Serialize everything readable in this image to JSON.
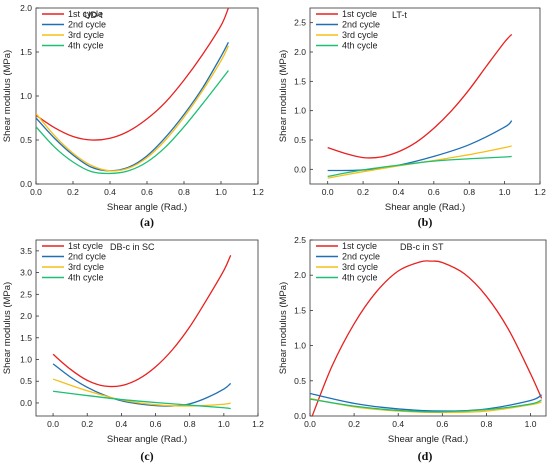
{
  "chart_data": [
    {
      "type": "line",
      "panel": "a",
      "caption": "(a)",
      "tag": "UD-t",
      "xlabel": "Shear angle (Rad.)",
      "ylabel": "Shear modulus (MPa)",
      "xlim": [
        0,
        1.2
      ],
      "ylim": [
        0,
        2.0
      ],
      "xticks": [
        "0.0",
        "0.2",
        "0.4",
        "0.6",
        "0.8",
        "1.0",
        "1.2"
      ],
      "yticks": [
        "0.0",
        "0.5",
        "1.0",
        "1.5",
        "2.0"
      ],
      "legend_position": "top-right",
      "series": [
        {
          "name": "1st cycle",
          "color": "#e8211f",
          "x": [
            0,
            0.1,
            0.2,
            0.3,
            0.4,
            0.5,
            0.6,
            0.7,
            0.8,
            0.9,
            1.0,
            1.04
          ],
          "y": [
            0.78,
            0.64,
            0.54,
            0.5,
            0.52,
            0.6,
            0.74,
            0.93,
            1.18,
            1.47,
            1.8,
            2.0
          ]
        },
        {
          "name": "2nd cycle",
          "color": "#1f6fb4",
          "x": [
            0,
            0.1,
            0.2,
            0.3,
            0.4,
            0.5,
            0.6,
            0.7,
            0.8,
            0.9,
            1.0,
            1.04
          ],
          "y": [
            0.75,
            0.52,
            0.33,
            0.19,
            0.15,
            0.19,
            0.32,
            0.53,
            0.79,
            1.09,
            1.45,
            1.61
          ]
        },
        {
          "name": "3rd cycle",
          "color": "#f5bf16",
          "x": [
            0,
            0.1,
            0.2,
            0.3,
            0.4,
            0.5,
            0.6,
            0.7,
            0.8,
            0.9,
            1.0,
            1.04
          ],
          "y": [
            0.8,
            0.55,
            0.35,
            0.21,
            0.15,
            0.18,
            0.3,
            0.5,
            0.76,
            1.06,
            1.4,
            1.57
          ]
        },
        {
          "name": "4th cycle",
          "color": "#1dbf73",
          "x": [
            0,
            0.1,
            0.2,
            0.3,
            0.4,
            0.5,
            0.6,
            0.7,
            0.8,
            0.9,
            1.0,
            1.04
          ],
          "y": [
            0.65,
            0.42,
            0.25,
            0.14,
            0.12,
            0.15,
            0.25,
            0.42,
            0.65,
            0.91,
            1.18,
            1.29
          ]
        }
      ]
    },
    {
      "type": "line",
      "panel": "b",
      "caption": "(b)",
      "tag": "LT-t",
      "xlabel": "Shear angle (Rad.)",
      "ylabel": "Shear modulus (MPa)",
      "xlim": [
        -0.1,
        1.2
      ],
      "ylim": [
        -0.25,
        2.75
      ],
      "xticks": [
        "0.0",
        "0.2",
        "0.4",
        "0.6",
        "0.8",
        "1.0",
        "1.2"
      ],
      "yticks": [
        "0.0",
        "0.5",
        "1.0",
        "1.5",
        "2.0",
        "2.5"
      ],
      "legend_position": "top-left",
      "series": [
        {
          "name": "1st cycle",
          "color": "#e8211f",
          "x": [
            0,
            0.1,
            0.2,
            0.3,
            0.4,
            0.5,
            0.6,
            0.7,
            0.8,
            0.9,
            1.0,
            1.04
          ],
          "y": [
            0.37,
            0.27,
            0.2,
            0.21,
            0.3,
            0.46,
            0.7,
            1.0,
            1.36,
            1.77,
            2.17,
            2.3
          ]
        },
        {
          "name": "2nd cycle",
          "color": "#1f6fb4",
          "x": [
            0,
            0.2,
            0.4,
            0.6,
            0.8,
            1.0,
            1.04
          ],
          "y": [
            -0.02,
            -0.01,
            0.07,
            0.22,
            0.42,
            0.72,
            0.83
          ]
        },
        {
          "name": "3rd cycle",
          "color": "#f5bf16",
          "x": [
            0,
            0.2,
            0.4,
            0.6,
            0.8,
            1.0,
            1.04
          ],
          "y": [
            -0.15,
            -0.04,
            0.06,
            0.15,
            0.25,
            0.37,
            0.4
          ]
        },
        {
          "name": "4th cycle",
          "color": "#1dbf73",
          "x": [
            0,
            0.2,
            0.4,
            0.6,
            0.8,
            1.0,
            1.04
          ],
          "y": [
            -0.12,
            -0.01,
            0.07,
            0.14,
            0.18,
            0.21,
            0.22
          ]
        }
      ]
    },
    {
      "type": "line",
      "panel": "c",
      "caption": "(c)",
      "tag": "DB-c in SC",
      "xlabel": "Shear angle (Rad.)",
      "ylabel": "Shear modulus (MPa)",
      "xlim": [
        -0.1,
        1.2
      ],
      "ylim": [
        -0.3,
        3.75
      ],
      "xticks": [
        "0.0",
        "0.2",
        "0.4",
        "0.6",
        "0.8",
        "1.0",
        "1.2"
      ],
      "yticks": [
        "0.0",
        "0.5",
        "1.0",
        "1.5",
        "2.0",
        "2.5",
        "3.0",
        "3.5"
      ],
      "legend_position": "top-left",
      "series": [
        {
          "name": "1st cycle",
          "color": "#e8211f",
          "x": [
            0,
            0.1,
            0.2,
            0.3,
            0.4,
            0.5,
            0.6,
            0.7,
            0.8,
            0.9,
            1.0,
            1.04
          ],
          "y": [
            1.12,
            0.78,
            0.52,
            0.39,
            0.4,
            0.55,
            0.83,
            1.23,
            1.75,
            2.38,
            3.05,
            3.4
          ]
        },
        {
          "name": "2nd cycle",
          "color": "#1f6fb4",
          "x": [
            0,
            0.1,
            0.2,
            0.3,
            0.4,
            0.5,
            0.6,
            0.7,
            0.8,
            0.9,
            1.0,
            1.04
          ],
          "y": [
            0.9,
            0.6,
            0.36,
            0.18,
            0.05,
            -0.02,
            -0.06,
            -0.07,
            -0.02,
            0.12,
            0.32,
            0.45
          ]
        },
        {
          "name": "3rd cycle",
          "color": "#f5bf16",
          "x": [
            0,
            0.2,
            0.4,
            0.6,
            0.8,
            1.0,
            1.04
          ],
          "y": [
            0.55,
            0.28,
            0.07,
            -0.04,
            -0.07,
            -0.03,
            0.0
          ]
        },
        {
          "name": "4th cycle",
          "color": "#1dbf73",
          "x": [
            0,
            0.2,
            0.4,
            0.6,
            0.8,
            1.0,
            1.04
          ],
          "y": [
            0.27,
            0.17,
            0.08,
            0.01,
            -0.05,
            -0.11,
            -0.13
          ]
        }
      ]
    },
    {
      "type": "line",
      "panel": "d",
      "caption": "(d)",
      "tag": "DB-c in ST",
      "xlabel": "Shear angle (Rad.)",
      "ylabel": "Shear modulus (MPa)",
      "xlim": [
        0,
        1.07
      ],
      "ylim": [
        0,
        2.5
      ],
      "xticks": [
        "0.0",
        "0.2",
        "0.4",
        "0.6",
        "0.8",
        "1.0"
      ],
      "yticks": [
        "0.0",
        "0.5",
        "1.0",
        "1.5",
        "2.0",
        "2.5"
      ],
      "legend_position": "top-left",
      "series": [
        {
          "name": "1st cycle",
          "color": "#e8211f",
          "x": [
            0.01,
            0.1,
            0.2,
            0.3,
            0.4,
            0.5,
            0.55,
            0.6,
            0.7,
            0.8,
            0.9,
            1.0,
            1.05
          ],
          "y": [
            0.0,
            0.71,
            1.31,
            1.76,
            2.06,
            2.19,
            2.2,
            2.18,
            2.02,
            1.7,
            1.23,
            0.6,
            0.25
          ]
        },
        {
          "name": "2nd cycle",
          "color": "#1f6fb4",
          "x": [
            0,
            0.2,
            0.4,
            0.6,
            0.8,
            1.0,
            1.05
          ],
          "y": [
            0.32,
            0.18,
            0.1,
            0.07,
            0.1,
            0.22,
            0.3
          ]
        },
        {
          "name": "3rd cycle",
          "color": "#f5bf16",
          "x": [
            0,
            0.2,
            0.4,
            0.6,
            0.8,
            1.0,
            1.05
          ],
          "y": [
            0.25,
            0.13,
            0.07,
            0.05,
            0.07,
            0.16,
            0.2
          ]
        },
        {
          "name": "4th cycle",
          "color": "#1dbf73",
          "x": [
            0,
            0.2,
            0.4,
            0.6,
            0.8,
            1.0,
            1.05
          ],
          "y": [
            0.24,
            0.14,
            0.08,
            0.06,
            0.09,
            0.17,
            0.23
          ]
        }
      ]
    }
  ]
}
